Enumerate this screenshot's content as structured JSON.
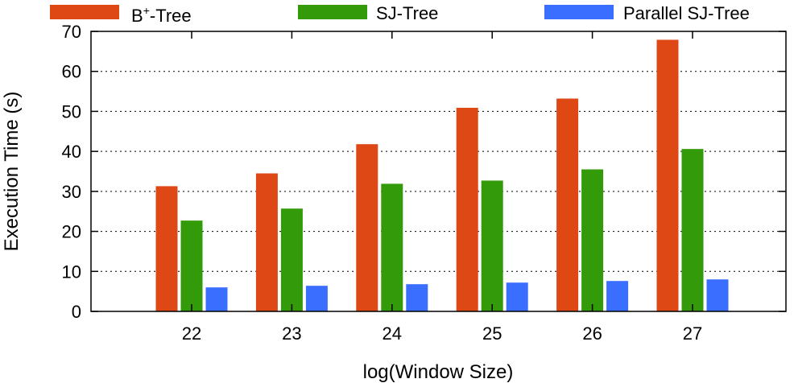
{
  "chart_data": {
    "type": "bar",
    "categories": [
      "22",
      "23",
      "24",
      "25",
      "26",
      "27"
    ],
    "series": [
      {
        "name": "B+-Tree",
        "color": "#dd4814",
        "values": [
          31.3,
          34.5,
          41.8,
          50.9,
          53.2,
          67.9
        ]
      },
      {
        "name": "SJ-Tree",
        "color": "#339a09",
        "values": [
          22.7,
          25.7,
          31.9,
          32.7,
          35.5,
          40.6
        ]
      },
      {
        "name": "Parallel SJ-Tree",
        "color": "#3a6eff",
        "values": [
          6.0,
          6.4,
          6.8,
          7.2,
          7.6,
          8.0
        ]
      }
    ],
    "legend": {
      "entries": [
        {
          "base": "B",
          "sup": "+",
          "rest": "-Tree"
        },
        {
          "text": "SJ-Tree"
        },
        {
          "text": "Parallel SJ-Tree"
        }
      ],
      "placement": "top"
    },
    "xlabel": "log(Window Size)",
    "ylabel": "Execution Time (s)",
    "ylim": [
      0,
      70
    ],
    "yticks": [
      "0",
      "10",
      "20",
      "30",
      "40",
      "50",
      "60",
      "70"
    ],
    "grid": "horizontal-dotted"
  }
}
